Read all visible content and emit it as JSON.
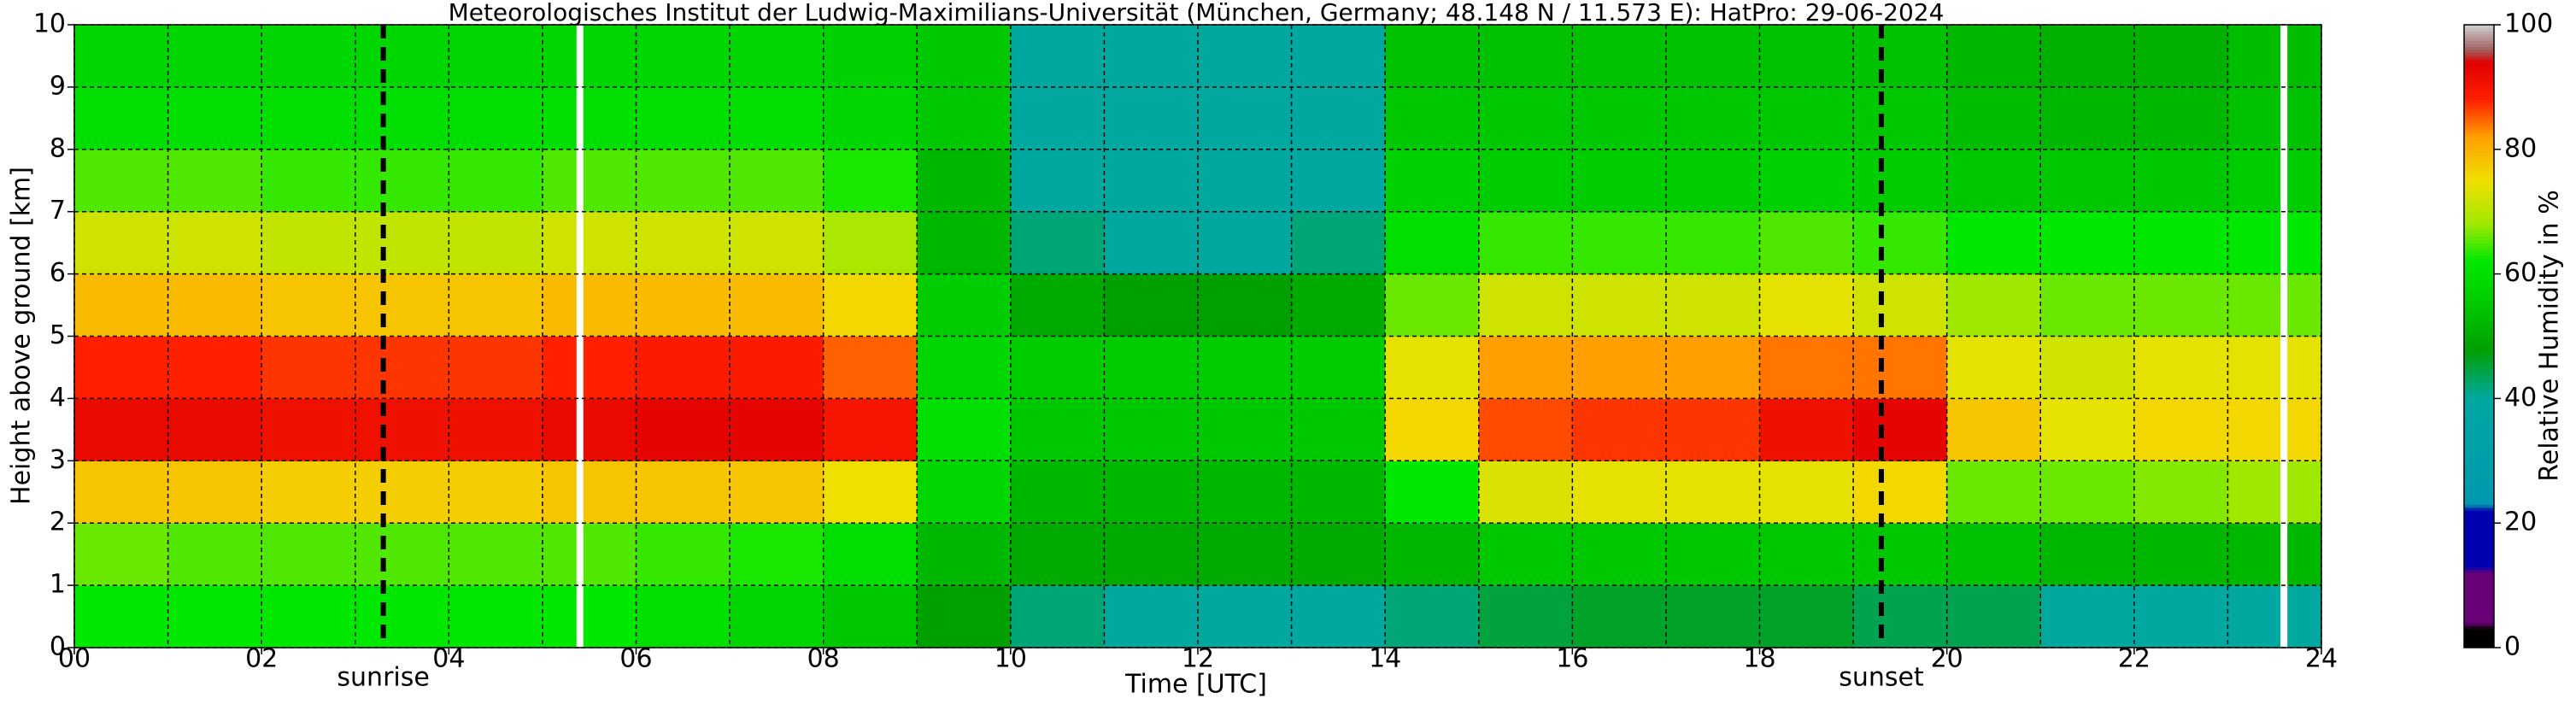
{
  "chart_data": {
    "type": "heatmap",
    "title": "Meteorologisches Institut der Ludwig-Maximilians-Universität (München, Germany; 48.148 N / 11.573 E):    HatPro: 29-06-2024",
    "xlabel": "Time [UTC]",
    "ylabel": "Height above ground [km]",
    "colorbar_label": "Relative Humidity in %",
    "xlim": [
      0,
      24
    ],
    "ylim": [
      0,
      10
    ],
    "xticks": [
      {
        "value": 0,
        "label": "00"
      },
      {
        "value": 2,
        "label": "02"
      },
      {
        "value": 4,
        "label": "04"
      },
      {
        "value": 6,
        "label": "06"
      },
      {
        "value": 8,
        "label": "08"
      },
      10,
      12,
      14,
      16,
      18,
      20,
      22,
      24
    ],
    "xminor": [
      1,
      3,
      5,
      7,
      9,
      11,
      13,
      15,
      17,
      19,
      21,
      23
    ],
    "yticks": [
      0,
      1,
      2,
      3,
      4,
      5,
      6,
      7,
      8,
      9,
      10
    ],
    "clim": [
      0,
      100
    ],
    "cticks": [
      0,
      20,
      40,
      60,
      80,
      100
    ],
    "grid": true,
    "colorscale": [
      [
        0,
        "#000000"
      ],
      [
        3,
        "#000000"
      ],
      [
        4,
        "#6a0078"
      ],
      [
        12,
        "#6a0078"
      ],
      [
        13,
        "#0000b0"
      ],
      [
        22,
        "#0000b0"
      ],
      [
        23,
        "#0098b0"
      ],
      [
        40,
        "#00a8a0"
      ],
      [
        48,
        "#00a000"
      ],
      [
        55,
        "#00c800"
      ],
      [
        62,
        "#00e800"
      ],
      [
        68,
        "#a0e800"
      ],
      [
        75,
        "#f0e000"
      ],
      [
        82,
        "#ffa000"
      ],
      [
        88,
        "#ff2000"
      ],
      [
        94,
        "#e00000"
      ],
      [
        96,
        "#a06060"
      ],
      [
        100,
        "#d0d0d0"
      ]
    ],
    "x": [
      0,
      1,
      2,
      3,
      4,
      5,
      6,
      7,
      8,
      9,
      10,
      11,
      12,
      13,
      14,
      15,
      16,
      17,
      18,
      19,
      20,
      21,
      22,
      23,
      24
    ],
    "y": [
      0,
      1,
      2,
      3,
      4,
      5,
      6,
      7,
      8,
      9,
      10
    ],
    "z": [
      [
        62,
        62,
        62,
        62,
        62,
        62,
        60,
        58,
        55,
        48,
        42,
        40,
        40,
        40,
        42,
        45,
        46,
        46,
        46,
        44,
        44,
        40,
        40,
        40
      ],
      [
        66,
        65,
        65,
        65,
        65,
        65,
        64,
        63,
        60,
        52,
        50,
        50,
        50,
        50,
        52,
        55,
        55,
        55,
        55,
        55,
        54,
        52,
        52,
        52
      ],
      [
        78,
        78,
        77,
        77,
        77,
        78,
        78,
        78,
        75,
        58,
        52,
        52,
        52,
        52,
        62,
        73,
        74,
        74,
        74,
        76,
        66,
        66,
        67,
        68
      ],
      [
        92,
        92,
        91,
        91,
        91,
        92,
        93,
        93,
        90,
        60,
        55,
        55,
        55,
        55,
        76,
        86,
        87,
        87,
        91,
        93,
        78,
        74,
        76,
        76
      ],
      [
        88,
        88,
        87,
        87,
        87,
        88,
        89,
        89,
        85,
        58,
        56,
        56,
        56,
        56,
        74,
        82,
        82,
        82,
        84,
        84,
        74,
        72,
        74,
        74
      ],
      [
        79,
        79,
        78,
        78,
        78,
        79,
        79,
        79,
        76,
        56,
        50,
        48,
        48,
        50,
        66,
        72,
        72,
        72,
        74,
        72,
        68,
        66,
        66,
        66
      ],
      [
        72,
        72,
        71,
        71,
        71,
        72,
        72,
        72,
        69,
        52,
        42,
        40,
        40,
        42,
        60,
        64,
        64,
        64,
        65,
        64,
        62,
        62,
        62,
        62
      ],
      [
        65,
        65,
        64,
        64,
        64,
        65,
        65,
        65,
        63,
        52,
        40,
        40,
        40,
        40,
        57,
        56,
        56,
        56,
        57,
        56,
        55,
        55,
        55,
        56
      ],
      [
        60,
        60,
        60,
        60,
        60,
        60,
        60,
        60,
        58,
        55,
        40,
        40,
        40,
        40,
        55,
        55,
        55,
        55,
        55,
        55,
        53,
        52,
        52,
        54
      ],
      [
        58,
        58,
        58,
        58,
        58,
        58,
        58,
        58,
        57,
        55,
        40,
        40,
        40,
        40,
        54,
        54,
        54,
        54,
        54,
        54,
        52,
        51,
        51,
        53
      ]
    ],
    "no_data": [
      5.4,
      23.6
    ],
    "annotations": [
      {
        "text": "sunrise",
        "x": 3.3
      },
      {
        "text": "sunset",
        "x": 19.3
      }
    ]
  }
}
